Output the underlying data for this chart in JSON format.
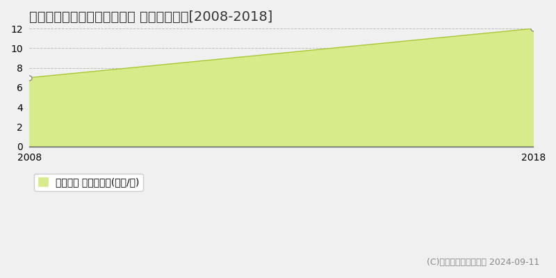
{
  "title": "河東郡音更町すずらん台南町 土地価格推移[2008-2018]",
  "x_values": [
    2008,
    2018
  ],
  "y_values": [
    7,
    12
  ],
  "x_min": 2008,
  "x_max": 2018,
  "y_min": 0,
  "y_max": 12,
  "y_ticks": [
    0,
    2,
    4,
    6,
    8,
    10,
    12
  ],
  "fill_color": "#d8eb8a",
  "line_color": "#a8c832",
  "marker_facecolor": "#ffffff",
  "marker_edgecolor": "#888888",
  "background_color": "#f0f0f0",
  "plot_bg_color": "#f0f0f0",
  "grid_color": "#999999",
  "legend_label": "土地価格 平均坪単価(万円/坪)",
  "copyright_text": "(C)土地価格ドットコム 2024-09-11",
  "title_fontsize": 14,
  "tick_fontsize": 10,
  "legend_fontsize": 10,
  "copyright_fontsize": 9
}
